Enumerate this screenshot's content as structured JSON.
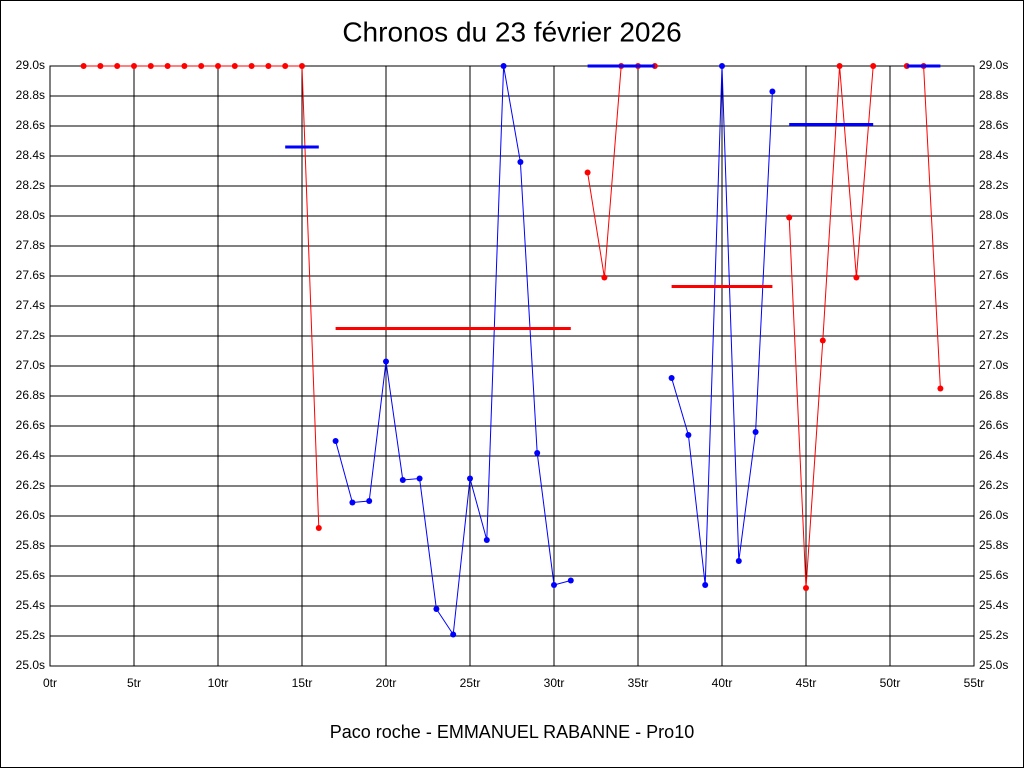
{
  "chart_data": {
    "type": "line",
    "title": "Chronos du 23 février 2026",
    "xlabel": "Paco roche - EMMANUEL RABANNE - Pro10",
    "xlim": [
      0,
      55
    ],
    "xticks": [
      {
        "value": 0,
        "label": "0tr"
      },
      {
        "value": 5,
        "label": "5tr"
      },
      {
        "value": 10,
        "label": "10tr"
      },
      {
        "value": 15,
        "label": "15tr"
      },
      {
        "value": 20,
        "label": "20tr"
      },
      {
        "value": 25,
        "label": "25tr"
      },
      {
        "value": 30,
        "label": "30tr"
      },
      {
        "value": 35,
        "label": "35tr"
      },
      {
        "value": 40,
        "label": "40tr"
      },
      {
        "value": 45,
        "label": "45tr"
      },
      {
        "value": 50,
        "label": "50tr"
      },
      {
        "value": 55,
        "label": "55tr"
      }
    ],
    "ylim": [
      25.0,
      29.0
    ],
    "yticks": [
      {
        "value": 25.0,
        "label": "25.0s"
      },
      {
        "value": 25.2,
        "label": "25.2s"
      },
      {
        "value": 25.4,
        "label": "25.4s"
      },
      {
        "value": 25.6,
        "label": "25.6s"
      },
      {
        "value": 25.8,
        "label": "25.8s"
      },
      {
        "value": 26.0,
        "label": "26.0s"
      },
      {
        "value": 26.2,
        "label": "26.2s"
      },
      {
        "value": 26.4,
        "label": "26.4s"
      },
      {
        "value": 26.6,
        "label": "26.6s"
      },
      {
        "value": 26.8,
        "label": "26.8s"
      },
      {
        "value": 27.0,
        "label": "27.0s"
      },
      {
        "value": 27.2,
        "label": "27.2s"
      },
      {
        "value": 27.4,
        "label": "27.4s"
      },
      {
        "value": 27.6,
        "label": "27.6s"
      },
      {
        "value": 27.8,
        "label": "27.8s"
      },
      {
        "value": 28.0,
        "label": "28.0s"
      },
      {
        "value": 28.2,
        "label": "28.2s"
      },
      {
        "value": 28.4,
        "label": "28.4s"
      },
      {
        "value": 28.6,
        "label": "28.6s"
      },
      {
        "value": 28.8,
        "label": "28.8s"
      },
      {
        "value": 29.0,
        "label": "29.0s"
      }
    ],
    "grid": true,
    "series": [
      {
        "color": "#ff0000",
        "x": [
          2,
          3,
          4,
          5,
          6,
          7,
          8,
          9,
          10,
          11,
          12,
          13,
          14,
          15,
          16
        ],
        "values": [
          29.0,
          29.0,
          29.0,
          29.0,
          29.0,
          29.0,
          29.0,
          29.0,
          29.0,
          29.0,
          29.0,
          29.0,
          29.0,
          29.0,
          25.92
        ]
      },
      {
        "color": "#0000ff",
        "x": [
          17,
          18,
          19,
          20,
          21,
          22,
          23,
          24,
          25,
          26,
          27,
          28,
          29,
          30,
          31
        ],
        "values": [
          26.5,
          26.09,
          26.1,
          27.03,
          26.24,
          26.25,
          25.38,
          25.21,
          26.25,
          25.84,
          29.0,
          28.36,
          26.42,
          25.54,
          25.57
        ]
      },
      {
        "color": "#ff0000",
        "x": [
          32,
          33,
          34,
          35,
          36
        ],
        "values": [
          28.29,
          27.59,
          29.0,
          29.0,
          29.0
        ]
      },
      {
        "color": "#0000ff",
        "x": [
          37,
          38,
          39,
          40,
          41,
          42,
          43
        ],
        "values": [
          26.92,
          26.54,
          25.54,
          29.0,
          25.7,
          26.56,
          28.83
        ]
      },
      {
        "color": "#ff0000",
        "x": [
          44,
          45,
          46,
          47,
          48,
          49
        ],
        "values": [
          27.99,
          25.52,
          27.17,
          29.0,
          27.59,
          29.0
        ]
      },
      {
        "color": "#ff0000",
        "x": [
          51,
          52,
          53
        ],
        "values": [
          29.0,
          29.0,
          26.85
        ]
      }
    ],
    "means": [
      {
        "color": "#0000ff",
        "x": [
          14,
          16
        ],
        "value": 28.46
      },
      {
        "color": "#ff0000",
        "x": [
          17,
          31
        ],
        "value": 27.25
      },
      {
        "color": "#0000ff",
        "x": [
          32,
          36
        ],
        "value": 29.0
      },
      {
        "color": "#ff0000",
        "x": [
          37,
          43
        ],
        "value": 27.53
      },
      {
        "color": "#0000ff",
        "x": [
          44,
          49
        ],
        "value": 28.61
      },
      {
        "color": "#0000ff",
        "x": [
          51,
          53
        ],
        "value": 29.0
      }
    ]
  }
}
